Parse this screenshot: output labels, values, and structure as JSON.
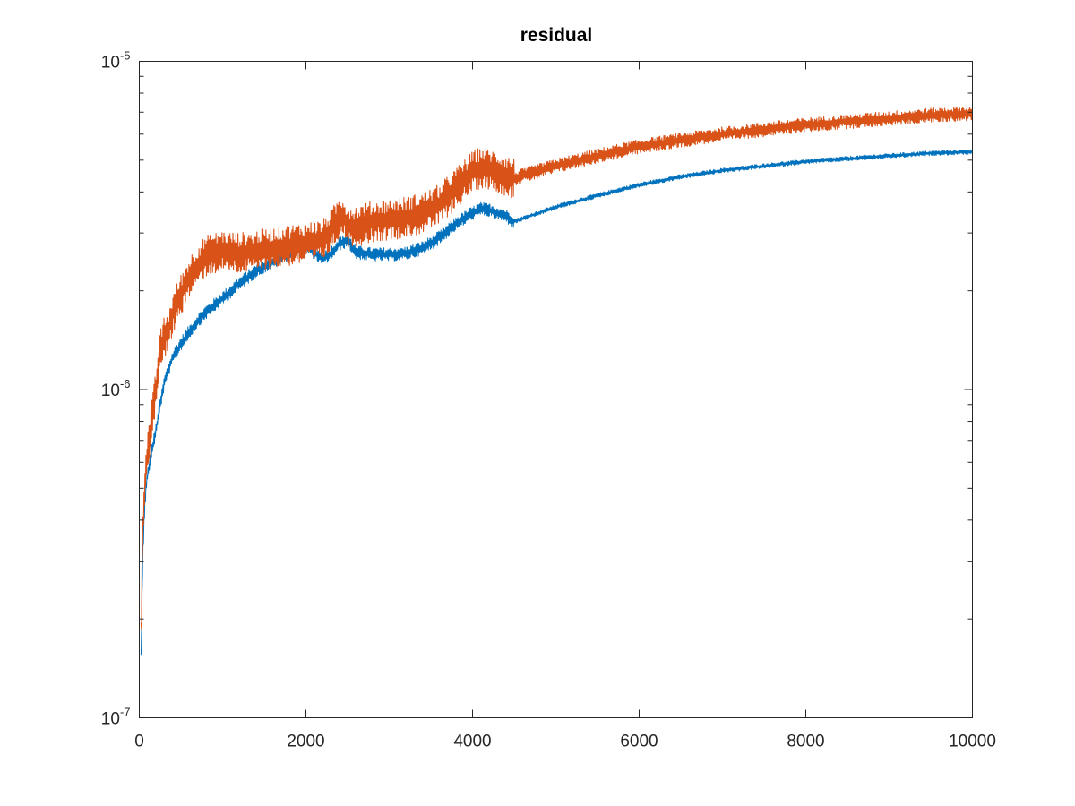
{
  "chart_data": {
    "type": "line",
    "title": "residual",
    "xlabel": "",
    "ylabel": "",
    "xlim": [
      0,
      10000
    ],
    "ylim": [
      1e-07,
      1e-05
    ],
    "yscale": "log",
    "grid": false,
    "legend": "none",
    "x_ticks": [
      "0",
      "2000",
      "4000",
      "6000",
      "8000",
      "10000"
    ],
    "y_ticks": [
      {
        "base": "10",
        "exp": "-7",
        "value": 1e-07
      },
      {
        "base": "10",
        "exp": "-6",
        "value": 1e-06
      },
      {
        "base": "10",
        "exp": "-5",
        "value": 1e-05
      }
    ],
    "series": [
      {
        "color": "#0072bd",
        "noise": 0.015,
        "x": [
          20,
          40,
          60,
          80,
          100,
          150,
          200,
          250,
          300,
          350,
          400,
          500,
          600,
          700,
          800,
          1000,
          1200,
          1400,
          1600,
          1800,
          1900,
          2000,
          2100,
          2200,
          2300,
          2400,
          2500,
          2600,
          2700,
          2800,
          3000,
          3200,
          3400,
          3600,
          3800,
          4000,
          4100,
          4200,
          4300,
          4400,
          4500,
          5000,
          5500,
          6000,
          6500,
          7000,
          7500,
          8000,
          8500,
          9000,
          9500,
          10000
        ],
        "y": [
          1.5e-07,
          3e-07,
          4.2e-07,
          5e-07,
          5.5e-07,
          6.5e-07,
          7.5e-07,
          9e-07,
          1.05e-06,
          1.15e-06,
          1.25e-06,
          1.38e-06,
          1.5e-06,
          1.62e-06,
          1.72e-06,
          1.9e-06,
          2.1e-06,
          2.3e-06,
          2.45e-06,
          2.6e-06,
          2.65e-06,
          2.75e-06,
          2.62e-06,
          2.5e-06,
          2.6e-06,
          2.78e-06,
          2.85e-06,
          2.62e-06,
          2.6e-06,
          2.58e-06,
          2.58e-06,
          2.6e-06,
          2.7e-06,
          2.9e-06,
          3.2e-06,
          3.45e-06,
          3.55e-06,
          3.52e-06,
          3.45e-06,
          3.38e-06,
          3.25e-06,
          3.6e-06,
          3.9e-06,
          4.2e-06,
          4.45e-06,
          4.65e-06,
          4.8e-06,
          4.95e-06,
          5.05e-06,
          5.15e-06,
          5.25e-06,
          5.3e-06
        ]
      },
      {
        "color": "#d95319",
        "noise": 0.045,
        "x": [
          20,
          40,
          60,
          80,
          100,
          150,
          200,
          250,
          300,
          350,
          400,
          500,
          600,
          700,
          800,
          1000,
          1200,
          1400,
          1600,
          1800,
          2000,
          2200,
          2300,
          2400,
          2450,
          2500,
          2600,
          2800,
          3000,
          3200,
          3400,
          3600,
          3800,
          4000,
          4100,
          4200,
          4300,
          4400,
          4500,
          5000,
          5500,
          6000,
          6500,
          7000,
          7500,
          8000,
          8500,
          9000,
          9500,
          10000
        ],
        "y": [
          1.7e-07,
          3.5e-07,
          5e-07,
          5.8e-07,
          6.5e-07,
          8e-07,
          1e-06,
          1.3e-06,
          1.45e-06,
          1.5e-06,
          1.7e-06,
          1.95e-06,
          2.2e-06,
          2.4e-06,
          2.55e-06,
          2.65e-06,
          2.6e-06,
          2.65e-06,
          2.7e-06,
          2.75e-06,
          2.8e-06,
          2.85e-06,
          3.05e-06,
          3.35e-06,
          3.4e-06,
          3.15e-06,
          3.15e-06,
          3.25e-06,
          3.3e-06,
          3.35e-06,
          3.45e-06,
          3.65e-06,
          4.1e-06,
          4.6e-06,
          4.75e-06,
          4.7e-06,
          4.6e-06,
          4.5e-06,
          4.4e-06,
          4.8e-06,
          5.15e-06,
          5.5e-06,
          5.75e-06,
          6e-06,
          6.2e-06,
          6.4e-06,
          6.55e-06,
          6.7e-06,
          6.85e-06,
          6.95e-06
        ]
      }
    ]
  }
}
